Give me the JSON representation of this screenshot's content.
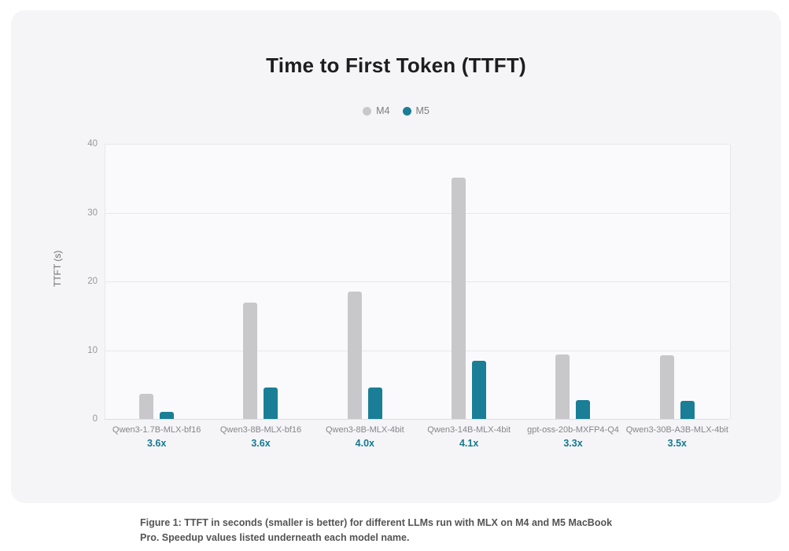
{
  "figure": {
    "caption": "Figure 1: TTFT in seconds (smaller is better) for different LLMs run with MLX on M4 and M5 MacBook Pro. Speedup values listed underneath each model name."
  },
  "chart_data": {
    "type": "bar",
    "title": "Time to First Token (TTFT)",
    "xlabel": "",
    "ylabel": "TTFT (s)",
    "ylim": [
      0,
      40
    ],
    "yticks": [
      0,
      10,
      20,
      30,
      40
    ],
    "grid": "horizontal",
    "legend_position": "top-center",
    "categories": [
      "Qwen3-1.7B-MLX-bf16",
      "Qwen3-8B-MLX-bf16",
      "Qwen3-8B-MLX-4bit",
      "Qwen3-14B-MLX-4bit",
      "gpt-oss-20b-MXFP4-Q4",
      "Qwen3-30B-A3B-MLX-4bit"
    ],
    "speedups": [
      "3.6x",
      "3.6x",
      "4.0x",
      "4.1x",
      "3.3x",
      "3.5x"
    ],
    "series": [
      {
        "name": "M4",
        "color": "#c8c8ca",
        "values": [
          3.7,
          16.9,
          18.5,
          35.1,
          9.4,
          9.3
        ]
      },
      {
        "name": "M5",
        "color": "#1a7e96",
        "values": [
          1.0,
          4.6,
          4.6,
          8.5,
          2.8,
          2.6
        ]
      }
    ]
  },
  "colors": {
    "card_bg": "#f5f5f7",
    "page_bg": "#ffffff",
    "grid": "#e9e9ec",
    "axis_text": "#98989c",
    "category_text": "#86868b",
    "speedup_text": "#15798f",
    "title_text": "#1d1d1f",
    "caption_text": "#545456"
  }
}
